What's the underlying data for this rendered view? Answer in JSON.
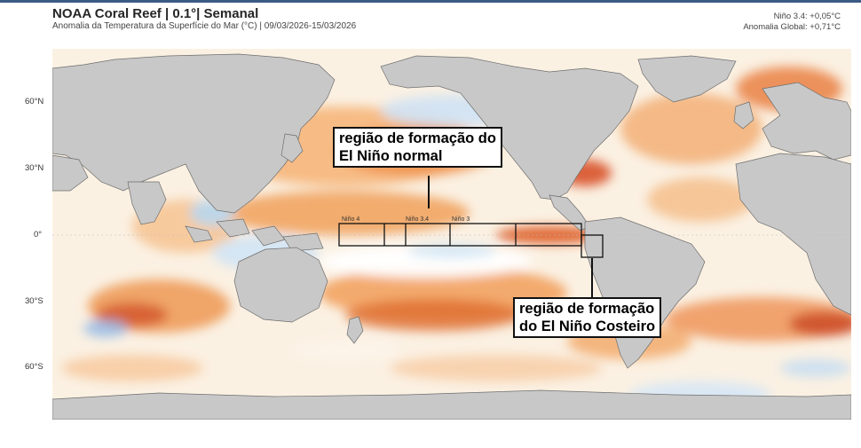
{
  "header": {
    "title": "NOAA Coral Reef | 0.1°| Semanal",
    "subtitle": "Anomalia da Temperatura da Superfície do Mar (°C) | 09/03/2026-15/03/2026",
    "nino34": "Niño 3.4: +0,05°C",
    "global_anomaly": "Anomalia Global: +0,71°C"
  },
  "latitude_labels": [
    "60°N",
    "30°N",
    "0°",
    "30°S",
    "60°S"
  ],
  "regions": {
    "nino4": "Niño 4",
    "nino34": "Niño 3.4",
    "nino3": "Niño 3"
  },
  "annotations": {
    "normal_line1": "região de formação do",
    "normal_line2": "El Niño normal",
    "coastal_line1": "região de formação",
    "coastal_line2": "do El Niño Costeiro"
  },
  "colors": {
    "land": "#c8c8c8",
    "ocean_neutral": "#fbf3ea",
    "warm_light": "#f8c98a",
    "warm_medium": "#ef9145",
    "warm_strong": "#d85a22",
    "warm_extreme": "#a82314",
    "cool_light": "#cfe3f4",
    "cool_medium": "#8ab8e4"
  }
}
